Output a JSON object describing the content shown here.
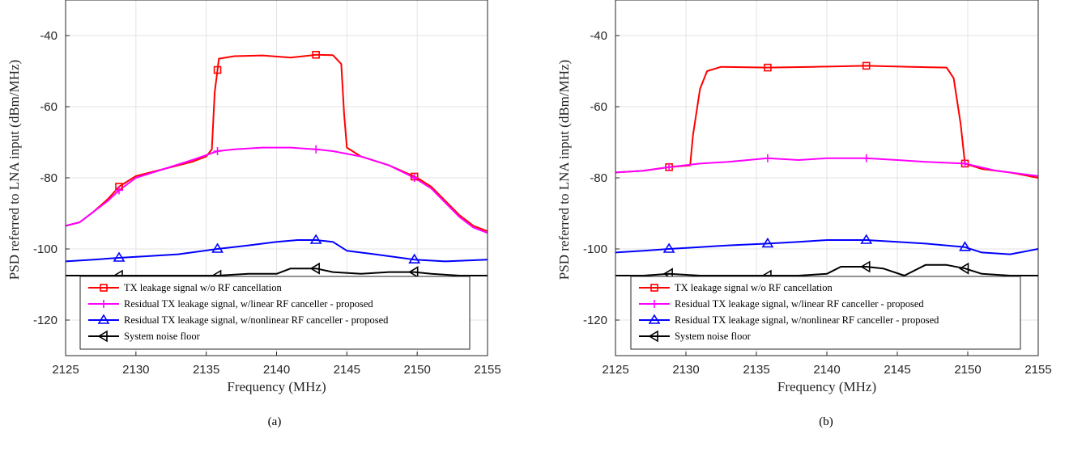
{
  "chart_data": [
    {
      "type": "line",
      "caption": "(a)",
      "xlabel": "Frequency (MHz)",
      "ylabel": "PSD referred to LNA input (dBm/MHz)",
      "xlim": [
        2125,
        2155
      ],
      "ylim": [
        -130,
        -30
      ],
      "xticks": [
        2125,
        2130,
        2135,
        2140,
        2145,
        2150,
        2155
      ],
      "yticks": [
        -40,
        -60,
        -80,
        -100,
        -120
      ],
      "grid": true,
      "legend_position": "bottom-center",
      "series": [
        {
          "name": "TX leakage signal w/o RF cancellation",
          "color": "#ff0000",
          "marker": "square",
          "x": [
            2125,
            2126,
            2127,
            2128,
            2128.8,
            2130,
            2132,
            2134,
            2135,
            2135.4,
            2135.6,
            2135.9,
            2137,
            2139,
            2141,
            2142.8,
            2144,
            2144.6,
            2144.8,
            2145,
            2146,
            2148,
            2150,
            2151,
            2152,
            2153,
            2154,
            2155
          ],
          "y": [
            -93.5,
            -92.5,
            -89.5,
            -86,
            -82.5,
            -79.5,
            -77.5,
            -75.5,
            -74,
            -72,
            -56,
            -46.5,
            -45.8,
            -45.6,
            -46.2,
            -45.4,
            -45.5,
            -48,
            -62,
            -71.5,
            -74,
            -76.5,
            -80,
            -82.5,
            -86.5,
            -90.5,
            -93.5,
            -95
          ]
        },
        {
          "name": "Residual TX leakage signal, w/linear RF canceller - proposed",
          "color": "#ff00ff",
          "marker": "plus",
          "x": [
            2125,
            2126,
            2127,
            2128,
            2128.8,
            2130,
            2132,
            2134,
            2135.8,
            2137,
            2139,
            2141,
            2142.8,
            2144,
            2146,
            2148,
            2149.8,
            2151,
            2152,
            2153,
            2154,
            2155
          ],
          "y": [
            -93.5,
            -92.5,
            -89.5,
            -86.5,
            -83.5,
            -80,
            -77.5,
            -75,
            -72.5,
            -72,
            -71.5,
            -71.5,
            -72,
            -72.5,
            -74,
            -76.5,
            -80,
            -83,
            -87,
            -91,
            -94,
            -95.5
          ]
        },
        {
          "name": "Residual TX leakage signal, w/nonlinear RF canceller - proposed",
          "color": "#0000ff",
          "marker": "triangle-up",
          "x": [
            2125,
            2127,
            2128.8,
            2131,
            2133,
            2135.8,
            2138,
            2140,
            2141.5,
            2142.8,
            2144,
            2145,
            2147,
            2149.8,
            2152,
            2155
          ],
          "y": [
            -103.5,
            -103,
            -102.5,
            -102,
            -101.5,
            -100,
            -99,
            -98,
            -97.5,
            -97.5,
            -98,
            -100.5,
            -101.5,
            -103,
            -103.5,
            -103
          ]
        },
        {
          "name": "System noise floor",
          "color": "#000000",
          "marker": "triangle-left",
          "x": [
            2125,
            2127,
            2128.8,
            2131,
            2133,
            2135.8,
            2138,
            2140,
            2141,
            2142.8,
            2144,
            2146,
            2148,
            2149.8,
            2151,
            2153,
            2155
          ],
          "y": [
            -107.5,
            -107.5,
            -107.5,
            -107.5,
            -107.5,
            -107.5,
            -107,
            -107,
            -105.5,
            -105.5,
            -106.5,
            -107,
            -106.5,
            -106.5,
            -107,
            -107.5,
            -107.5
          ]
        }
      ]
    },
    {
      "type": "line",
      "caption": "(b)",
      "xlabel": "Frequency (MHz)",
      "ylabel": "PSD referred to LNA input (dBm/MHz)",
      "xlim": [
        2125,
        2155
      ],
      "ylim": [
        -130,
        -30
      ],
      "xticks": [
        2125,
        2130,
        2135,
        2140,
        2145,
        2150,
        2155
      ],
      "yticks": [
        -40,
        -60,
        -80,
        -100,
        -120
      ],
      "grid": true,
      "legend_position": "bottom-center",
      "series": [
        {
          "name": "TX leakage signal w/o RF cancellation",
          "color": "#ff0000",
          "marker": "square",
          "x": [
            2125,
            2127,
            2128.8,
            2130.3,
            2130.5,
            2131,
            2131.5,
            2132.5,
            2135.8,
            2139,
            2142.8,
            2146,
            2148.5,
            2149,
            2149.5,
            2149.8,
            2151,
            2153,
            2155
          ],
          "y": [
            -78.5,
            -78,
            -77,
            -76.5,
            -68,
            -55,
            -50,
            -48.8,
            -49,
            -48.8,
            -48.5,
            -48.8,
            -49,
            -52,
            -65,
            -76,
            -77.5,
            -78.5,
            -80
          ]
        },
        {
          "name": "Residual TX leakage signal, w/linear RF canceller - proposed",
          "color": "#ff00ff",
          "marker": "plus",
          "x": [
            2125,
            2127,
            2128.8,
            2131,
            2133,
            2135.8,
            2138,
            2140,
            2142.8,
            2145,
            2147,
            2149.8,
            2152,
            2155
          ],
          "y": [
            -78.5,
            -78,
            -77,
            -76,
            -75.5,
            -74.5,
            -75,
            -74.5,
            -74.5,
            -75,
            -75.5,
            -76,
            -78,
            -79.5
          ]
        },
        {
          "name": "Residual TX leakage signal, w/nonlinear RF canceller - proposed",
          "color": "#0000ff",
          "marker": "triangle-up",
          "x": [
            2125,
            2127,
            2128.8,
            2131,
            2133,
            2135.8,
            2138,
            2140,
            2142.8,
            2145,
            2147,
            2149.8,
            2151,
            2153,
            2155
          ],
          "y": [
            -101,
            -100.5,
            -100,
            -99.5,
            -99,
            -98.5,
            -98,
            -97.5,
            -97.5,
            -98,
            -98.5,
            -99.5,
            -101,
            -101.5,
            -100
          ]
        },
        {
          "name": "System noise floor",
          "color": "#000000",
          "marker": "triangle-left",
          "x": [
            2125,
            2127,
            2128.8,
            2131,
            2133,
            2135.8,
            2138,
            2140,
            2141,
            2142.8,
            2144,
            2145.5,
            2147,
            2148.5,
            2149.8,
            2151,
            2153,
            2155
          ],
          "y": [
            -107.5,
            -107.5,
            -107,
            -107.5,
            -107.5,
            -107.5,
            -107.5,
            -107,
            -105,
            -105,
            -105.5,
            -107.5,
            -104.5,
            -104.5,
            -105.5,
            -107,
            -107.5,
            -107.5
          ]
        }
      ]
    }
  ]
}
